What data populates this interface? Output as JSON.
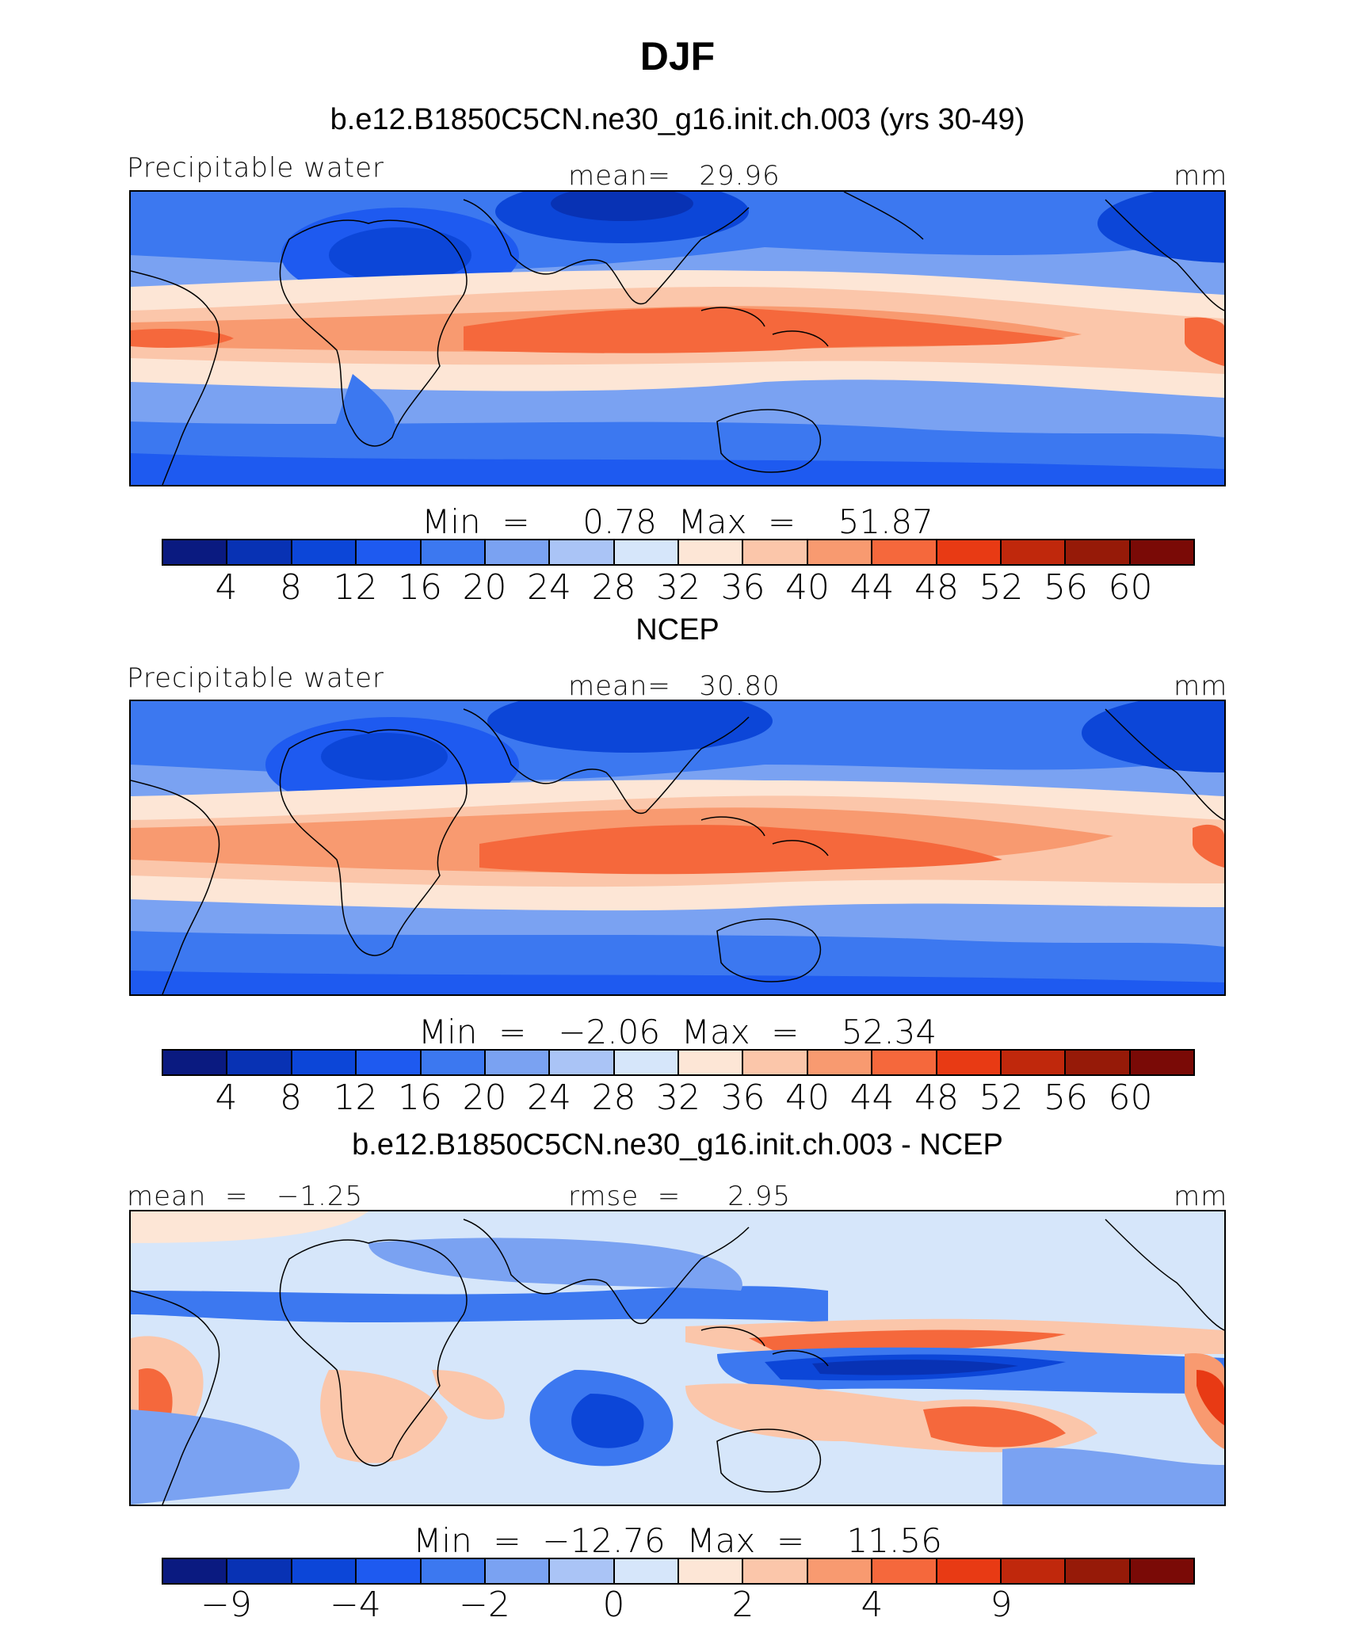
{
  "title": "DJF",
  "panels": [
    {
      "subtitle": "b.e12.B1850C5CN.ne30_g16.init.ch.003 (yrs 30-49)",
      "left_label": "Precipitable water",
      "center_label": "mean=   29.96",
      "right_label": "mm",
      "minmax": "Min  =     0.78  Max  =    51.87",
      "colorbar": {
        "ticks": [
          "4",
          "8",
          "12",
          "16",
          "20",
          "24",
          "28",
          "32",
          "36",
          "40",
          "44",
          "48",
          "52",
          "56",
          "60"
        ],
        "colors": [
          "#0a1a80",
          "#0832b4",
          "#0c46d8",
          "#1e5af0",
          "#3c78f0",
          "#7aa2f2",
          "#aac4f6",
          "#d6e6fa",
          "#fde6d6",
          "#fbc6aa",
          "#f89a70",
          "#f5683c",
          "#e83a14",
          "#c0280c",
          "#961a08",
          "#7a0a06"
        ]
      }
    },
    {
      "subtitle": "NCEP",
      "left_label": "Precipitable water",
      "center_label": "mean=   30.80",
      "right_label": "mm",
      "minmax": "Min  =   −2.06  Max  =    52.34",
      "colorbar": {
        "ticks": [
          "4",
          "8",
          "12",
          "16",
          "20",
          "24",
          "28",
          "32",
          "36",
          "40",
          "44",
          "48",
          "52",
          "56",
          "60"
        ],
        "colors": [
          "#0a1a80",
          "#0832b4",
          "#0c46d8",
          "#1e5af0",
          "#3c78f0",
          "#7aa2f2",
          "#aac4f6",
          "#d6e6fa",
          "#fde6d6",
          "#fbc6aa",
          "#f89a70",
          "#f5683c",
          "#e83a14",
          "#c0280c",
          "#961a08",
          "#7a0a06"
        ]
      }
    },
    {
      "subtitle": "b.e12.B1850C5CN.ne30_g16.init.ch.003 - NCEP",
      "left_label": "mean  =   −1.25",
      "center_label": "rmse  =     2.95",
      "right_label": "mm",
      "minmax": "Min  =  −12.76  Max  =    11.56",
      "colorbar": {
        "ticks": [
          "−9",
          "−4",
          "−2",
          "0",
          "2",
          "4",
          "9"
        ],
        "colors": [
          "#0a1a80",
          "#0832b4",
          "#0c46d8",
          "#1e5af0",
          "#3c78f0",
          "#7aa2f2",
          "#aac4f6",
          "#d6e6fa",
          "#fde6d6",
          "#fbc6aa",
          "#f89a70",
          "#f5683c",
          "#e83a14",
          "#c0280c",
          "#961a08",
          "#7a0a06"
        ]
      }
    }
  ]
}
